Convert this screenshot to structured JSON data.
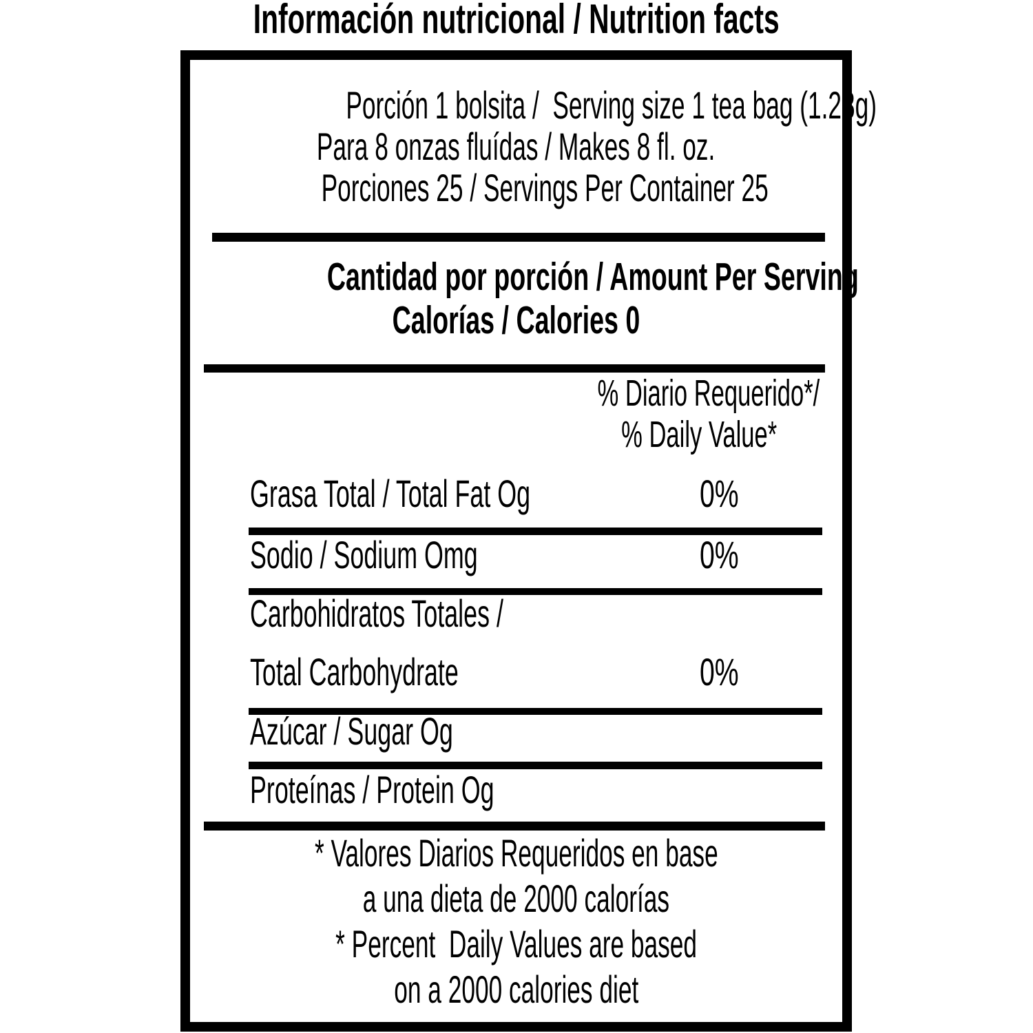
{
  "colors": {
    "text": "#000000",
    "background": "#ffffff"
  },
  "label": {
    "title": "Información nutricional / Nutrition facts",
    "serving_lines": [
      "Porción 1 bolsita /  Serving size 1 tea bag (1.28g)",
      "Para 8 onzas fluídas / Makes 8 fl. oz.",
      "Porciones 25 / Servings Per Container 25"
    ],
    "amount_header": {
      "line1": "Cantidad por porción / Amount Per Serving",
      "line2": "Calorías / Calories 0"
    },
    "daily_value_header": {
      "line1": "% Diario Requerido*/",
      "line2": "% Daily Value*"
    },
    "nutrients": [
      {
        "label": "Grasa Total / Total Fat Og",
        "daily_value": "0%"
      },
      {
        "label": "Sodio / Sodium Omg",
        "daily_value": "0%"
      },
      {
        "label_line1": "Carbohidratos Totales /",
        "label_line2": "Total Carbohydrate",
        "daily_value": "0%"
      },
      {
        "label": "Azúcar / Sugar Og"
      },
      {
        "label": "Proteínas / Protein Og"
      }
    ],
    "footnote_lines": [
      "* Valores Diarios Requeridos en base",
      "a una dieta de 2000 calorías",
      "* Percent  Daily Values are based",
      "on a 2000 calories diet"
    ]
  }
}
